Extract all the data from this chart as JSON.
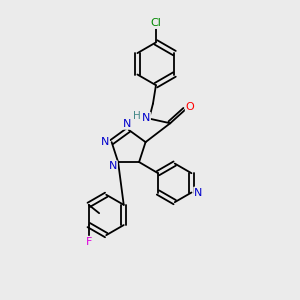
{
  "background_color": "#ebebeb",
  "bond_color": "#000000",
  "atom_colors": {
    "N": "#0000cc",
    "O": "#ff0000",
    "F": "#dd00dd",
    "Cl": "#008800",
    "H": "#448888",
    "C": "#000000"
  },
  "figsize": [
    3.0,
    3.0
  ],
  "dpi": 100,
  "lw": 1.3,
  "fs": 8.0
}
